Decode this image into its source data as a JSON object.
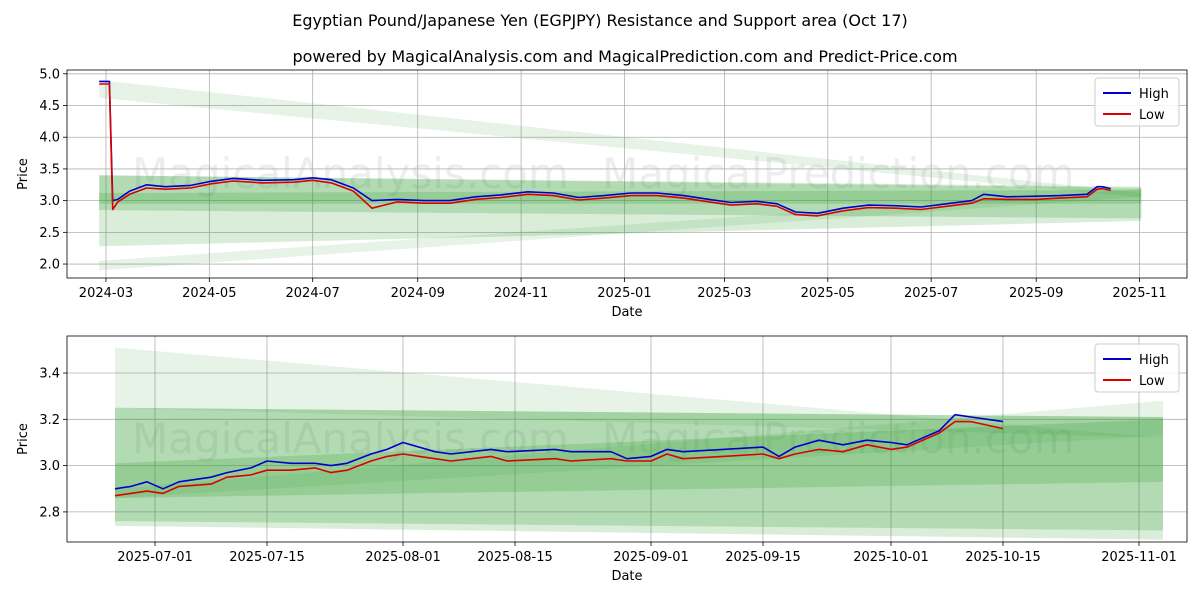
{
  "chart_data": {
    "title": "Egyptian Pound/Japanese Yen (EGPJPY) Resistance and Support area (Oct 17)",
    "subtitle": "powered by MagicalAnalysis.com and MagicalPrediction.com and Predict-Price.com",
    "watermark_left": "MagicalAnalysis.com",
    "watermark_right": "MagicalPrediction.com",
    "colors": {
      "high": "#0000cc",
      "low": "#dd0000",
      "band": "#2e9a2e"
    },
    "subplots": [
      {
        "type": "line",
        "xlabel": "Date",
        "ylabel": "Price",
        "x_range": [
          "2024-02-07",
          "2025-11-29"
        ],
        "ylim": [
          1.78,
          5.06
        ],
        "yticks": [
          2.0,
          2.5,
          3.0,
          3.5,
          4.0,
          4.5,
          5.0
        ],
        "ytick_labels": [
          "2.0",
          "2.5",
          "3.0",
          "3.5",
          "4.0",
          "4.5",
          "5.0"
        ],
        "xticks": [
          "2024-03-01",
          "2024-05-01",
          "2024-07-01",
          "2024-09-01",
          "2024-11-01",
          "2025-01-01",
          "2025-03-01",
          "2025-05-01",
          "2025-07-01",
          "2025-09-01",
          "2025-11-01"
        ],
        "xtick_labels": [
          "2024-03",
          "2024-05",
          "2024-07",
          "2024-09",
          "2024-11",
          "2025-01",
          "2025-03",
          "2025-05",
          "2025-07",
          "2025-09",
          "2025-11"
        ],
        "legend": {
          "position": "top-right",
          "entries": [
            "High",
            "Low"
          ]
        },
        "bands": [
          {
            "x": [
              "2024-02-26",
              "2025-11-02"
            ],
            "upper": [
              4.9,
              3.12
            ],
            "lower": [
              4.62,
              3.05
            ],
            "opacity": 0.12
          },
          {
            "x": [
              "2024-02-26",
              "2025-11-02"
            ],
            "upper": [
              2.05,
              3.18
            ],
            "lower": [
              1.9,
              3.06
            ],
            "opacity": 0.12
          },
          {
            "x": [
              "2024-02-26",
              "2025-11-02"
            ],
            "upper": [
              3.4,
              3.22
            ],
            "lower": [
              2.28,
              2.68
            ],
            "opacity": 0.18
          },
          {
            "x": [
              "2024-02-26",
              "2025-11-02"
            ],
            "upper": [
              3.4,
              3.2
            ],
            "lower": [
              2.85,
              2.72
            ],
            "opacity": 0.22
          },
          {
            "x": [
              "2024-02-26",
              "2025-11-02"
            ],
            "upper": [
              3.12,
              3.17
            ],
            "lower": [
              2.95,
              2.95
            ],
            "opacity": 0.22
          }
        ],
        "series": [
          {
            "name": "High",
            "x": [
              "2024-02-26",
              "2024-03-03",
              "2024-03-05",
              "2024-03-08",
              "2024-03-15",
              "2024-03-25",
              "2024-04-05",
              "2024-04-20",
              "2024-05-01",
              "2024-05-15",
              "2024-06-01",
              "2024-06-20",
              "2024-07-01",
              "2024-07-12",
              "2024-07-25",
              "2024-08-05",
              "2024-08-20",
              "2024-09-05",
              "2024-09-20",
              "2024-10-05",
              "2024-10-20",
              "2024-11-05",
              "2024-11-20",
              "2024-12-05",
              "2024-12-20",
              "2025-01-05",
              "2025-01-20",
              "2025-02-05",
              "2025-02-20",
              "2025-03-05",
              "2025-03-20",
              "2025-04-01",
              "2025-04-12",
              "2025-04-25",
              "2025-05-10",
              "2025-05-25",
              "2025-06-10",
              "2025-06-25",
              "2025-07-10",
              "2025-07-25",
              "2025-08-01",
              "2025-08-15",
              "2025-09-01",
              "2025-09-15",
              "2025-10-01",
              "2025-10-07",
              "2025-10-10",
              "2025-10-15"
            ],
            "values": [
              4.88,
              4.88,
              3.0,
              3.02,
              3.15,
              3.25,
              3.22,
              3.24,
              3.3,
              3.35,
              3.32,
              3.33,
              3.36,
              3.33,
              3.2,
              3.0,
              3.02,
              3.0,
              3.0,
              3.06,
              3.09,
              3.14,
              3.12,
              3.05,
              3.08,
              3.12,
              3.12,
              3.08,
              3.02,
              2.97,
              2.99,
              2.95,
              2.82,
              2.8,
              2.88,
              2.93,
              2.92,
              2.9,
              2.95,
              3.0,
              3.1,
              3.06,
              3.07,
              3.08,
              3.1,
              3.22,
              3.22,
              3.19
            ]
          },
          {
            "name": "Low",
            "x": [
              "2024-02-26",
              "2024-03-03",
              "2024-03-05",
              "2024-03-08",
              "2024-03-15",
              "2024-03-25",
              "2024-04-05",
              "2024-04-20",
              "2024-05-01",
              "2024-05-15",
              "2024-06-01",
              "2024-06-20",
              "2024-07-01",
              "2024-07-12",
              "2024-07-25",
              "2024-08-05",
              "2024-08-20",
              "2024-09-05",
              "2024-09-20",
              "2024-10-05",
              "2024-10-20",
              "2024-11-05",
              "2024-11-20",
              "2024-12-05",
              "2024-12-20",
              "2025-01-05",
              "2025-01-20",
              "2025-02-05",
              "2025-02-20",
              "2025-03-05",
              "2025-03-20",
              "2025-04-01",
              "2025-04-12",
              "2025-04-25",
              "2025-05-10",
              "2025-05-25",
              "2025-06-10",
              "2025-06-25",
              "2025-07-10",
              "2025-07-25",
              "2025-08-01",
              "2025-08-15",
              "2025-09-01",
              "2025-09-15",
              "2025-10-01",
              "2025-10-07",
              "2025-10-10",
              "2025-10-15"
            ],
            "values": [
              4.84,
              4.84,
              2.86,
              2.98,
              3.1,
              3.2,
              3.18,
              3.2,
              3.26,
              3.31,
              3.28,
              3.29,
              3.32,
              3.28,
              3.15,
              2.88,
              2.98,
              2.96,
              2.96,
              3.02,
              3.05,
              3.1,
              3.08,
              3.01,
              3.04,
              3.08,
              3.08,
              3.04,
              2.98,
              2.93,
              2.95,
              2.91,
              2.78,
              2.76,
              2.84,
              2.89,
              2.88,
              2.86,
              2.91,
              2.96,
              3.03,
              3.02,
              3.02,
              3.04,
              3.06,
              3.18,
              3.19,
              3.16
            ]
          }
        ]
      },
      {
        "type": "line",
        "xlabel": "Date",
        "ylabel": "Price",
        "x_range": [
          "2025-06-20",
          "2025-11-07"
        ],
        "ylim": [
          2.67,
          3.56
        ],
        "yticks": [
          2.8,
          3.0,
          3.2,
          3.4
        ],
        "ytick_labels": [
          "2.8",
          "3.0",
          "3.2",
          "3.4"
        ],
        "xticks": [
          "2025-07-01",
          "2025-07-15",
          "2025-08-01",
          "2025-08-15",
          "2025-09-01",
          "2025-09-15",
          "2025-10-01",
          "2025-10-15",
          "2025-11-01"
        ],
        "xtick_labels": [
          "2025-07-01",
          "2025-07-15",
          "2025-08-01",
          "2025-08-15",
          "2025-09-01",
          "2025-09-15",
          "2025-10-01",
          "2025-10-15",
          "2025-11-01"
        ],
        "legend": {
          "position": "top-right",
          "entries": [
            "High",
            "Low"
          ]
        },
        "bands": [
          {
            "x": [
              "2025-06-26",
              "2025-11-04"
            ],
            "upper": [
              3.51,
              3.12
            ],
            "lower": [
              3.25,
              3.12
            ],
            "opacity": 0.12
          },
          {
            "x": [
              "2025-06-26",
              "2025-11-04"
            ],
            "upper": [
              2.9,
              3.28
            ],
            "lower": [
              2.86,
              3.13
            ],
            "opacity": 0.12
          },
          {
            "x": [
              "2025-06-26",
              "2025-11-04"
            ],
            "upper": [
              3.25,
              3.21
            ],
            "lower": [
              2.74,
              2.68
            ],
            "opacity": 0.18
          },
          {
            "x": [
              "2025-06-26",
              "2025-11-04"
            ],
            "upper": [
              3.25,
              3.21
            ],
            "lower": [
              2.76,
              2.72
            ],
            "opacity": 0.22
          },
          {
            "x": [
              "2025-06-26",
              "2025-11-04"
            ],
            "upper": [
              3.01,
              3.2
            ],
            "lower": [
              2.86,
              2.93
            ],
            "opacity": 0.22
          }
        ],
        "series": [
          {
            "name": "High",
            "x": [
              "2025-06-26",
              "2025-06-28",
              "2025-06-30",
              "2025-07-02",
              "2025-07-04",
              "2025-07-08",
              "2025-07-10",
              "2025-07-13",
              "2025-07-15",
              "2025-07-18",
              "2025-07-21",
              "2025-07-23",
              "2025-07-25",
              "2025-07-28",
              "2025-07-30",
              "2025-08-01",
              "2025-08-05",
              "2025-08-07",
              "2025-08-12",
              "2025-08-14",
              "2025-08-20",
              "2025-08-22",
              "2025-08-27",
              "2025-08-29",
              "2025-09-01",
              "2025-09-03",
              "2025-09-05",
              "2025-09-10",
              "2025-09-15",
              "2025-09-17",
              "2025-09-19",
              "2025-09-22",
              "2025-09-25",
              "2025-09-28",
              "2025-10-01",
              "2025-10-03",
              "2025-10-07",
              "2025-10-09",
              "2025-10-11",
              "2025-10-15"
            ],
            "values": [
              2.9,
              2.91,
              2.93,
              2.9,
              2.93,
              2.95,
              2.97,
              2.99,
              3.02,
              3.01,
              3.01,
              3.0,
              3.01,
              3.05,
              3.07,
              3.1,
              3.06,
              3.05,
              3.07,
              3.06,
              3.07,
              3.06,
              3.06,
              3.03,
              3.04,
              3.07,
              3.06,
              3.07,
              3.08,
              3.04,
              3.08,
              3.11,
              3.09,
              3.11,
              3.1,
              3.09,
              3.15,
              3.22,
              3.21,
              3.19
            ]
          },
          {
            "name": "Low",
            "x": [
              "2025-06-26",
              "2025-06-28",
              "2025-06-30",
              "2025-07-02",
              "2025-07-04",
              "2025-07-08",
              "2025-07-10",
              "2025-07-13",
              "2025-07-15",
              "2025-07-18",
              "2025-07-21",
              "2025-07-23",
              "2025-07-25",
              "2025-07-28",
              "2025-07-30",
              "2025-08-01",
              "2025-08-05",
              "2025-08-07",
              "2025-08-12",
              "2025-08-14",
              "2025-08-20",
              "2025-08-22",
              "2025-08-27",
              "2025-08-29",
              "2025-09-01",
              "2025-09-03",
              "2025-09-05",
              "2025-09-10",
              "2025-09-15",
              "2025-09-17",
              "2025-09-19",
              "2025-09-22",
              "2025-09-25",
              "2025-09-28",
              "2025-10-01",
              "2025-10-03",
              "2025-10-07",
              "2025-10-09",
              "2025-10-11",
              "2025-10-15"
            ],
            "values": [
              2.87,
              2.88,
              2.89,
              2.88,
              2.91,
              2.92,
              2.95,
              2.96,
              2.98,
              2.98,
              2.99,
              2.97,
              2.98,
              3.02,
              3.04,
              3.05,
              3.03,
              3.02,
              3.04,
              3.02,
              3.03,
              3.02,
              3.03,
              3.02,
              3.02,
              3.05,
              3.03,
              3.04,
              3.05,
              3.03,
              3.05,
              3.07,
              3.06,
              3.09,
              3.07,
              3.08,
              3.14,
              3.19,
              3.19,
              3.16
            ]
          }
        ]
      }
    ]
  }
}
